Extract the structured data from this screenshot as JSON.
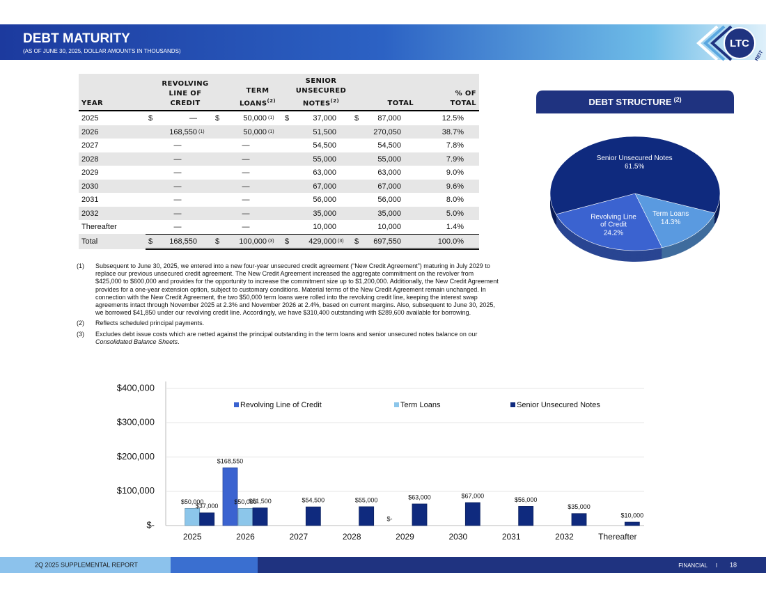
{
  "header": {
    "title": "DEBT MATURITY",
    "subtitle": "(AS OF JUNE 30, 2025, DOLLAR AMOUNTS IN THOUSANDS)",
    "logo": "LTC",
    "logo_sub": "REIT"
  },
  "table": {
    "columns": [
      {
        "label": "YEAR"
      },
      {
        "label": "REVOLVING LINE OF CREDIT"
      },
      {
        "label": "TERM LOANS",
        "note": "(2)"
      },
      {
        "label": "SENIOR UNSECURED NOTES",
        "note": "(2)"
      },
      {
        "label": "TOTAL"
      },
      {
        "label": "% OF TOTAL"
      }
    ],
    "rows": [
      [
        "2025",
        {
          "prefix": "$",
          "text": "—"
        },
        {
          "prefix": "$",
          "text": "50,000",
          "note": "(1)"
        },
        {
          "prefix": "$",
          "text": "37,000"
        },
        {
          "prefix": "$",
          "text": "87,000"
        },
        "12.5%"
      ],
      [
        "2026",
        {
          "text": "168,550",
          "note": "(1)"
        },
        {
          "text": "50,000",
          "note": "(1)"
        },
        "51,500",
        "270,050",
        "38.7%"
      ],
      [
        "2027",
        "—",
        "—",
        "54,500",
        "54,500",
        "7.8%"
      ],
      [
        "2028",
        "—",
        "—",
        "55,000",
        "55,000",
        "7.9%"
      ],
      [
        "2029",
        "—",
        "—",
        "63,000",
        "63,000",
        "9.0%"
      ],
      [
        "2030",
        "—",
        "—",
        "67,000",
        "67,000",
        "9.6%"
      ],
      [
        "2031",
        "—",
        "—",
        "56,000",
        "56,000",
        "8.0%"
      ],
      [
        "2032",
        "—",
        "—",
        "35,000",
        "35,000",
        "5.0%"
      ],
      [
        "Thereafter",
        "—",
        "—",
        "10,000",
        "10,000",
        "1.4%"
      ],
      [
        "Total",
        {
          "prefix": "$",
          "text": "168,550"
        },
        {
          "prefix": "$",
          "text": "100,000",
          "note": "(3)"
        },
        {
          "prefix": "$",
          "text": "429,000",
          "note": "(3)"
        },
        {
          "prefix": "$",
          "text": "697,550"
        },
        "100.0%"
      ]
    ]
  },
  "notes": [
    {
      "marker": "(1)",
      "text": "Subsequent to June 30, 2025, we entered into a new four-year unsecured credit agreement (“New Credit Agreement”) maturing in July 2029 to replace our previous unsecured credit agreement. The New Credit Agreement increased the aggregate commitment on the revolver from $425,000 to $600,000 and provides for the opportunity to increase the commitment size up to $1,200,000. Additionally, the New Credit Agreement provides for a one-year extension option, subject to customary conditions. Material terms of the New Credit Agreement remain unchanged. In connection with the New Credit Agreement, the two $50,000 term loans were rolled into the revolving credit line, keeping the interest swap agreements intact through November 2025 at 2.3% and November 2026 at 2.4%, based on current margins. Also, subsequent to June 30, 2025, we borrowed $41,850 under our revolving credit line. Accordingly, we have $310,400 outstanding with $289,600 available for borrowing."
    },
    {
      "marker": "(2)",
      "text": "Reflects scheduled principal payments."
    },
    {
      "marker": "(3)",
      "text": "Excludes debt issue costs which are netted against the principal outstanding in the term loans and senior unsecured notes balance on our ",
      "italic": "Consolidated Balance Sheets",
      "end": "."
    }
  ],
  "chart_data": [
    {
      "type": "pie",
      "title": "DEBT STRUCTURE",
      "title_note": "(2)",
      "categories": [
        "Senior Unsecured Notes",
        "Term Loans",
        "Revolving Line of Credit"
      ],
      "values": [
        61.5,
        14.3,
        24.2
      ],
      "value_labels": [
        "61.5%",
        "14.3%",
        "24.2%"
      ],
      "colors": [
        "#0f2a7e",
        "#5a9ae0",
        "#3b63d0"
      ]
    },
    {
      "type": "bar",
      "categories": [
        "2025",
        "2026",
        "2027",
        "2028",
        "2029",
        "2030",
        "2031",
        "2032",
        "Thereafter"
      ],
      "series": [
        {
          "name": "Revolving Line of Credit",
          "color": "#3b63d0",
          "values": [
            null,
            168550,
            null,
            null,
            0,
            null,
            null,
            null,
            null
          ],
          "value_labels": [
            null,
            "$168,550",
            null,
            null,
            "$-",
            null,
            null,
            null,
            null
          ]
        },
        {
          "name": "Term Loans",
          "color": "#8cc6ea",
          "values": [
            50000,
            50000,
            null,
            null,
            null,
            null,
            null,
            null,
            null
          ],
          "value_labels": [
            "$50,000",
            "$50,000",
            null,
            null,
            null,
            null,
            null,
            null,
            null
          ]
        },
        {
          "name": "Senior Unsecured Notes",
          "color": "#0f2a7e",
          "values": [
            37000,
            51500,
            54500,
            55000,
            63000,
            67000,
            56000,
            35000,
            10000
          ],
          "value_labels": [
            "$37,000",
            "$51,500",
            "$54,500",
            "$55,000",
            "$63,000",
            "$67,000",
            "$56,000",
            "$35,000",
            "$10,000"
          ]
        }
      ],
      "ylim": [
        0,
        400000
      ],
      "yticks": [
        {
          "value": 0,
          "label": "$-"
        },
        {
          "value": 100000,
          "label": "$100,000"
        },
        {
          "value": 200000,
          "label": "$200,000"
        },
        {
          "value": 300000,
          "label": "$300,000"
        },
        {
          "value": 400000,
          "label": "$400,000"
        }
      ],
      "grid": true,
      "legend": "top"
    }
  ],
  "footer": {
    "left": "2Q 2025 SUPPLEMENTAL REPORT",
    "section": "FINANCIAL",
    "separator": "I",
    "page": "18"
  }
}
